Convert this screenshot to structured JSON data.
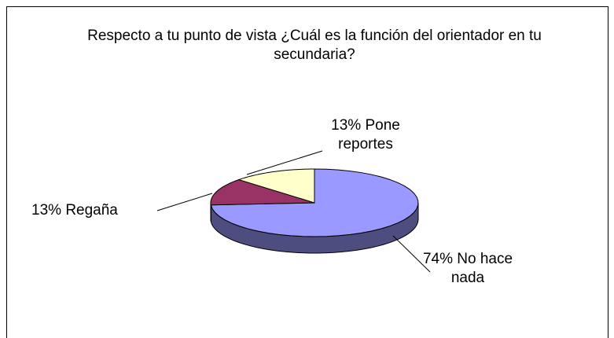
{
  "chart_data": {
    "type": "pie3d",
    "title": "Respecto a tu punto de vista ¿Cuál es la función del orientador en tu secundaria?",
    "categories": [
      "No hace nada",
      "Regaña",
      "Pone reportes"
    ],
    "values": [
      74,
      13,
      13
    ],
    "value_labels": [
      "74%",
      "13%",
      "13%"
    ],
    "colors": [
      "#9999ff",
      "#993366",
      "#ffffcc"
    ]
  }
}
